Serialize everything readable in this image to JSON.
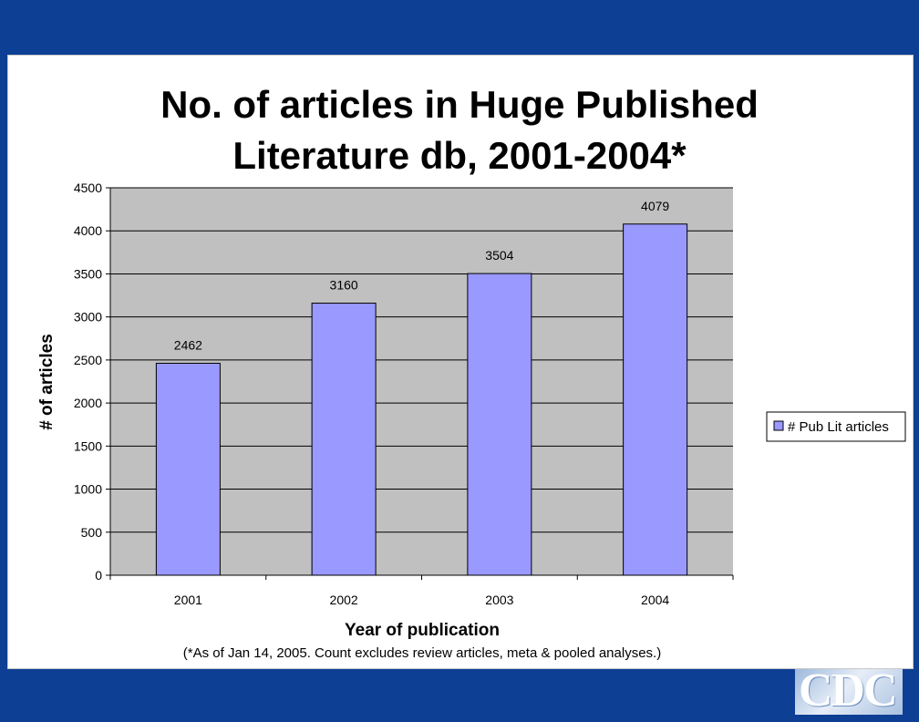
{
  "logo": {
    "text": "CDC"
  },
  "chart_data": {
    "type": "bar",
    "title_lines": [
      "No. of articles in Huge Published",
      "Literature db,  2001-2004*"
    ],
    "categories": [
      "2001",
      "2002",
      "2003",
      "2004"
    ],
    "series": [
      {
        "name": "# Pub Lit articles",
        "values": [
          2462,
          3160,
          3504,
          4079
        ]
      }
    ],
    "data_labels": [
      "2462",
      "3160",
      "3504",
      "4079"
    ],
    "xlabel": "Year of publication",
    "ylabel": "# of articles",
    "ylim": [
      0,
      4500
    ],
    "yticks": [
      0,
      500,
      1000,
      1500,
      2000,
      2500,
      3000,
      3500,
      4000,
      4500
    ],
    "ytick_labels": [
      "0",
      "500",
      "1000",
      "1500",
      "2000",
      "2500",
      "3000",
      "3500",
      "4000",
      "4500"
    ],
    "grid": true,
    "legend_position": "right",
    "footnote": "(*As of Jan 14, 2005. Count excludes review articles, meta & pooled analyses.)",
    "colors": {
      "bar": "#9999ff",
      "plot_bg": "#c0c0c0",
      "grid": "#000000"
    }
  }
}
